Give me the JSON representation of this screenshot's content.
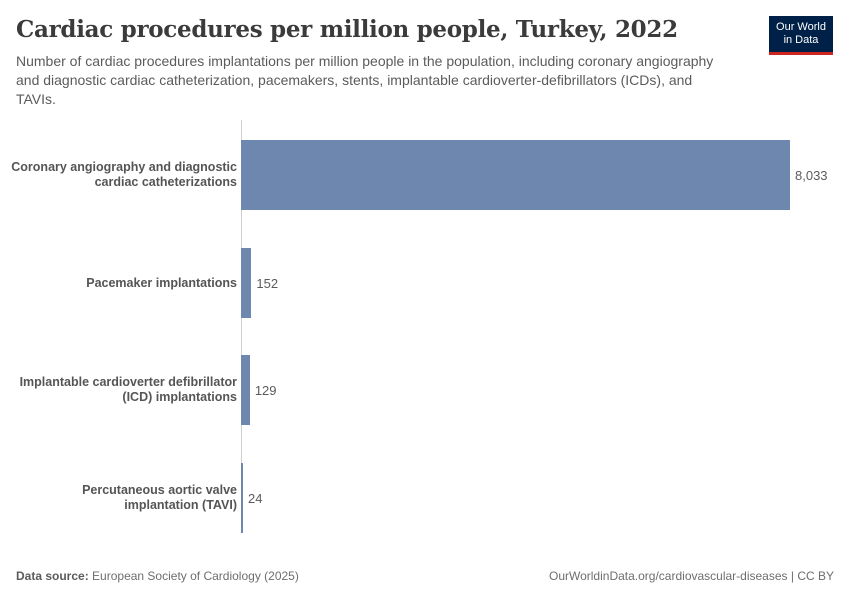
{
  "header": {
    "title": "Cardiac procedures per million people, Turkey, 2022",
    "subtitle": "Number of cardiac procedures implantations per million people in the population, including coronary angiography and diagnostic cardiac catheterization, pacemakers, stents, implantable cardioverter-defibrillators (ICDs), and TAVIs.",
    "logo_line1": "Our World",
    "logo_line2": "in Data"
  },
  "footer": {
    "source_label": "Data source:",
    "source_text": "European Society of Cardiology (2025)",
    "url": "OurWorldinData.org/cardiovascular-diseases | CC BY"
  },
  "colors": {
    "bar": "#6d87af",
    "logo_bg": "#002147",
    "logo_accent": "#ce261e"
  },
  "chart_data": {
    "type": "bar",
    "orientation": "horizontal",
    "title": "Cardiac procedures per million people, Turkey, 2022",
    "categories": [
      "Coronary angiography and diagnostic cardiac catheterizations",
      "Pacemaker implantations",
      "Implantable cardioverter defibrillator (ICD) implantations",
      "Percutaneous aortic valve implantation (TAVI)"
    ],
    "values": [
      8033,
      152,
      129,
      24
    ],
    "value_labels": [
      "8,033",
      "152",
      "129",
      "24"
    ],
    "xlabel": "",
    "ylabel": "",
    "xlim": [
      0,
      8033
    ],
    "grid": false,
    "legend": null
  }
}
